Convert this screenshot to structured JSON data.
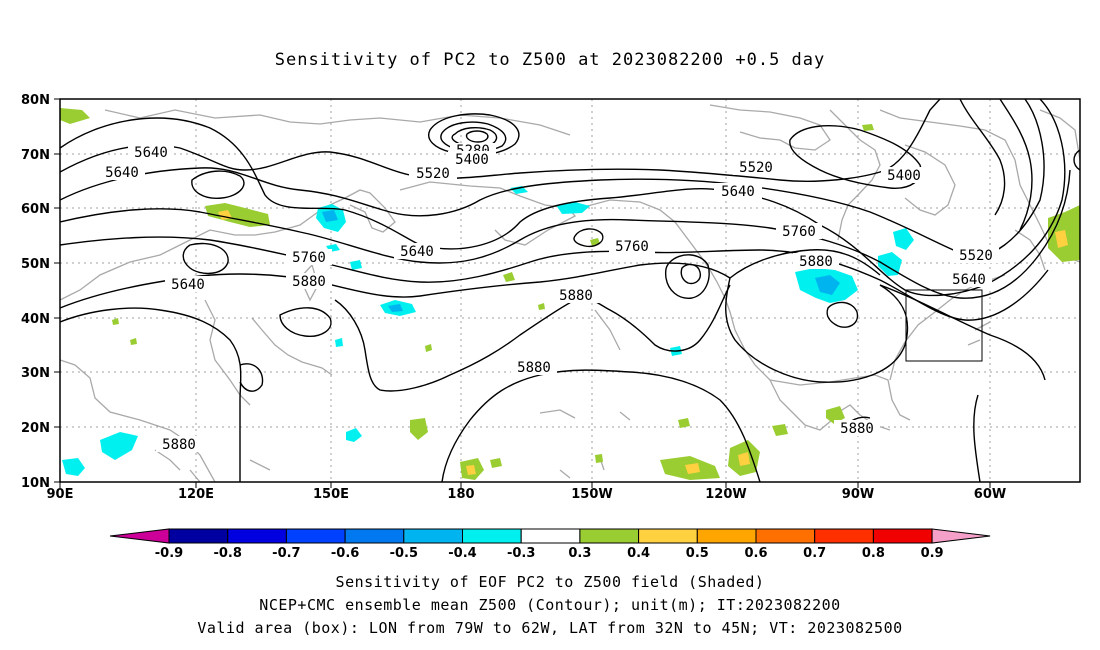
{
  "title": "Sensitivity of PC2 to Z500 at 2023082200 +0.5 day",
  "lat_labels": [
    "10N",
    "20N",
    "30N",
    "40N",
    "50N",
    "60N",
    "70N",
    "80N"
  ],
  "lon_labels": [
    "90E",
    "120E",
    "150E",
    "180",
    "150W",
    "120W",
    "90W",
    "60W"
  ],
  "contour_labels": [
    {
      "text": "5640",
      "v": 5640
    },
    {
      "text": "5640",
      "v": 5640
    },
    {
      "text": "5640",
      "v": 5640
    },
    {
      "text": "5280",
      "v": 5280
    },
    {
      "text": "5400",
      "v": 5400
    },
    {
      "text": "5520",
      "v": 5520
    },
    {
      "text": "5520",
      "v": 5520
    },
    {
      "text": "5640",
      "v": 5640
    },
    {
      "text": "5400",
      "v": 5400
    },
    {
      "text": "5640",
      "v": 5640
    },
    {
      "text": "5760",
      "v": 5760
    },
    {
      "text": "5760",
      "v": 5760
    },
    {
      "text": "5880",
      "v": 5880
    },
    {
      "text": "5760",
      "v": 5760
    },
    {
      "text": "5880",
      "v": 5880
    },
    {
      "text": "5520",
      "v": 5520
    },
    {
      "text": "5640",
      "v": 5640
    },
    {
      "text": "5880",
      "v": 5880
    },
    {
      "text": "5880",
      "v": 5880
    },
    {
      "text": "5880",
      "v": 5880
    }
  ],
  "colorbar": {
    "labels": [
      "-0.9",
      "-0.8",
      "-0.7",
      "-0.6",
      "-0.5",
      "-0.4",
      "-0.3",
      "0.3",
      "0.4",
      "0.5",
      "0.6",
      "0.7",
      "0.8",
      "0.9"
    ],
    "colors": [
      "#cc0099",
      "#0000a0",
      "#0000e0",
      "#0040ff",
      "#0078f0",
      "#00b4f0",
      "#00f0f0",
      "#ffffff",
      "#9acd32",
      "#ffd040",
      "#ffa500",
      "#ff7000",
      "#ff3000",
      "#f00000",
      "#f5a0c8"
    ]
  },
  "box": {
    "lon_range": "79W to 62W",
    "lat_range": "32N to 45N"
  },
  "caption": {
    "line1": "Sensitivity of EOF PC2 to Z500 field (Shaded)",
    "line2": "NCEP+CMC ensemble mean Z500 (Contour); unit(m); IT:2023082200",
    "line3": "Valid area (box): LON from 79W to 62W, LAT from 32N to 45N; VT: 2023082500"
  }
}
